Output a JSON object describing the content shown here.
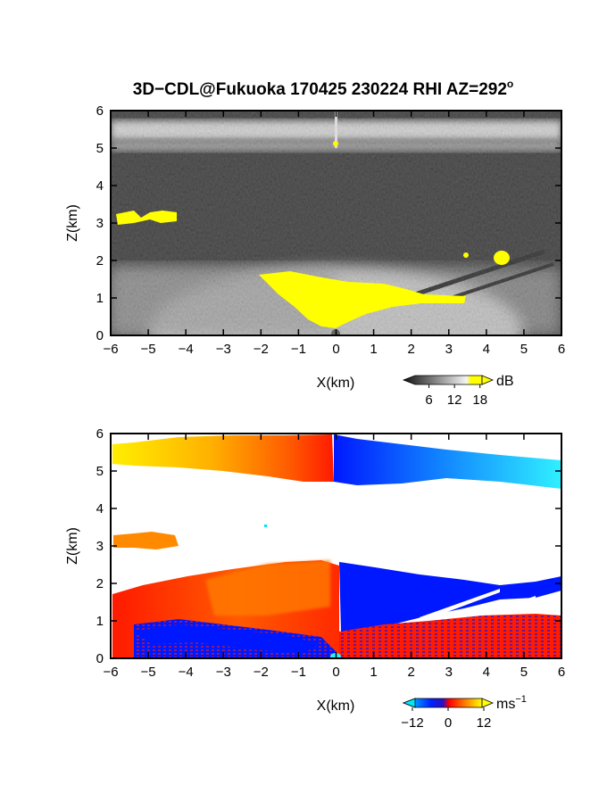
{
  "chart_data": [
    {
      "type": "heatmap",
      "title": "3D−CDL@Fukuoka 170425 230224 RHI AZ=292",
      "title_superscript": "o",
      "xlabel": "X(km)",
      "ylabel": "Z(km)",
      "xlim": [
        -6,
        6
      ],
      "ylim": [
        0,
        6
      ],
      "x_ticks": [
        "−6",
        "−5",
        "−4",
        "−3",
        "−2",
        "−1",
        "0",
        "1",
        "2",
        "3",
        "4",
        "5",
        "6"
      ],
      "y_ticks": [
        "0",
        "1",
        "2",
        "3",
        "4",
        "5",
        "6"
      ],
      "colorbar": {
        "unit": "dB",
        "ticks": [
          "6",
          "12",
          "18"
        ],
        "range": [
          0,
          21
        ],
        "colors": [
          "#1a1a1a",
          "#ffffff",
          "#ffff00"
        ]
      },
      "features": [
        {
          "kind": "layer",
          "x": [
            -6,
            6
          ],
          "z_center": 5.35,
          "z_thickness": 0.35,
          "value": 10
        },
        {
          "kind": "aerosol",
          "x": [
            -6,
            6
          ],
          "z": [
            0,
            1.6
          ],
          "value": 12
        },
        {
          "kind": "saturated_cloud",
          "x": [
            -1.9,
            1.9
          ],
          "z": [
            0,
            1.5
          ],
          "value": 21
        },
        {
          "kind": "saturated_patch",
          "x": [
            -6,
            -4.4
          ],
          "z_center": 3.1,
          "value": 21
        },
        {
          "kind": "saturated_patch",
          "x": [
            4.2,
            4.6
          ],
          "z_center": 2.1,
          "value": 21
        }
      ]
    },
    {
      "type": "heatmap",
      "xlabel": "X(km)",
      "ylabel": "Z(km)",
      "xlim": [
        -6,
        6
      ],
      "ylim": [
        0,
        6
      ],
      "x_ticks": [
        "−6",
        "−5",
        "−4",
        "−3",
        "−2",
        "−1",
        "0",
        "1",
        "2",
        "3",
        "4",
        "5",
        "6"
      ],
      "y_ticks": [
        "0",
        "1",
        "2",
        "3",
        "4",
        "5",
        "6"
      ],
      "colorbar": {
        "unit": "ms",
        "unit_superscript": "−1",
        "ticks": [
          "−12",
          "0",
          "12"
        ],
        "range": [
          -15,
          15
        ],
        "colors": [
          "#00e0ff",
          "#0020ff",
          "#ff0000",
          "#ff8000",
          "#ffff00"
        ]
      },
      "features": [
        {
          "kind": "upper_layer",
          "x": [
            -6,
            -0.1
          ],
          "z": [
            4.7,
            6.0
          ],
          "value_range": [
            12,
            3
          ]
        },
        {
          "kind": "upper_layer",
          "x": [
            -0.1,
            6
          ],
          "z": [
            4.6,
            6.0
          ],
          "value_range": [
            -3,
            -12
          ]
        },
        {
          "kind": "patch",
          "x": [
            -6,
            -4.2
          ],
          "z": [
            2.9,
            3.3
          ],
          "value": 6
        },
        {
          "kind": "lower_layer",
          "x": [
            -6,
            0.2
          ],
          "z": [
            0,
            2.5
          ],
          "value": 3
        },
        {
          "kind": "lower_layer",
          "x": [
            0.2,
            6
          ],
          "z": [
            1.2,
            2.6
          ],
          "value": -3
        },
        {
          "kind": "near_surface",
          "x": [
            -6,
            6
          ],
          "z": [
            0,
            1.0
          ],
          "value": -3
        }
      ]
    }
  ]
}
